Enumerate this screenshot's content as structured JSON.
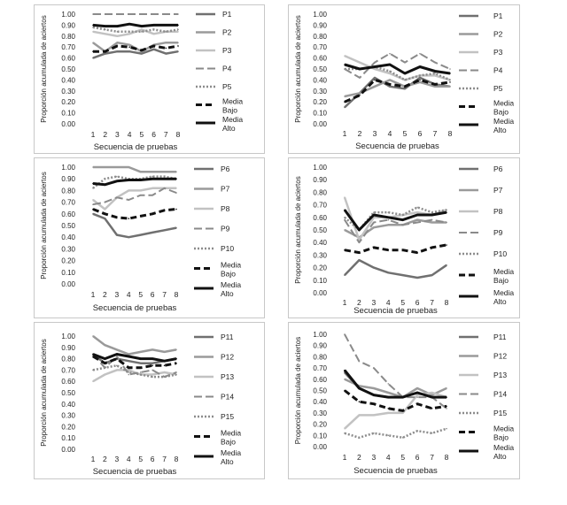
{
  "chart_data": [
    {
      "type": "line",
      "xlabel": "Secuencia de pruebas",
      "ylabel": "Proporción acumulada de aciertos",
      "ylim": [
        0,
        1
      ],
      "x": [
        1,
        2,
        3,
        4,
        5,
        6,
        7,
        8
      ],
      "yticks": [
        "0.00",
        "0.10",
        "0.20",
        "0.30",
        "0.40",
        "0.50",
        "0.60",
        "0.70",
        "0.80",
        "0.90",
        "1.00"
      ],
      "series": [
        {
          "name": "P1",
          "values": [
            0.6,
            0.64,
            0.66,
            0.66,
            0.64,
            0.68,
            0.64,
            0.66
          ]
        },
        {
          "name": "P2",
          "values": [
            0.74,
            0.66,
            0.74,
            0.72,
            0.66,
            0.72,
            0.74,
            0.74
          ]
        },
        {
          "name": "P3",
          "values": [
            0.84,
            0.82,
            0.8,
            0.82,
            0.86,
            0.82,
            0.84,
            0.84
          ]
        },
        {
          "name": "P4",
          "values": [
            1.0,
            1.0,
            1.0,
            1.0,
            1.0,
            1.0,
            1.0,
            1.0
          ]
        },
        {
          "name": "P5",
          "values": [
            0.88,
            0.86,
            0.84,
            0.84,
            0.84,
            0.86,
            0.84,
            0.86
          ]
        },
        {
          "name": "Media Bajo",
          "values": [
            0.66,
            0.66,
            0.71,
            0.7,
            0.67,
            0.71,
            0.69,
            0.71
          ]
        },
        {
          "name": "Media Alto",
          "values": [
            0.9,
            0.89,
            0.89,
            0.91,
            0.89,
            0.9,
            0.9,
            0.9
          ]
        }
      ]
    },
    {
      "type": "line",
      "xlabel": "Secuencia de pruebas",
      "ylabel": "Proporción acumulada de aciertos",
      "ylim": [
        0,
        1
      ],
      "x": [
        1,
        2,
        3,
        4,
        5,
        6,
        7,
        8
      ],
      "yticks": [
        "0.00",
        "0.10",
        "0.20",
        "0.30",
        "0.40",
        "0.50",
        "0.60",
        "0.70",
        "0.80",
        "0.90",
        "1.00"
      ],
      "series": [
        {
          "name": "P1",
          "values": [
            0.15,
            0.28,
            0.42,
            0.34,
            0.32,
            0.42,
            0.36,
            0.34
          ]
        },
        {
          "name": "P2",
          "values": [
            0.25,
            0.28,
            0.34,
            0.4,
            0.34,
            0.38,
            0.34,
            0.34
          ]
        },
        {
          "name": "P3",
          "values": [
            0.62,
            0.56,
            0.5,
            0.46,
            0.4,
            0.44,
            0.44,
            0.4
          ]
        },
        {
          "name": "P4",
          "values": [
            0.5,
            0.42,
            0.56,
            0.64,
            0.56,
            0.64,
            0.56,
            0.5
          ]
        },
        {
          "name": "P5",
          "values": [
            0.5,
            0.5,
            0.52,
            0.48,
            0.4,
            0.44,
            0.46,
            0.4
          ]
        },
        {
          "name": "Media Bajo",
          "values": [
            0.2,
            0.26,
            0.4,
            0.36,
            0.34,
            0.4,
            0.36,
            0.38
          ]
        },
        {
          "name": "Media Alto",
          "values": [
            0.54,
            0.5,
            0.52,
            0.54,
            0.46,
            0.52,
            0.48,
            0.46
          ]
        }
      ]
    },
    {
      "type": "line",
      "xlabel": "Secuencia de pruebas",
      "ylabel": "Proporción acumulada de aciertos",
      "ylim": [
        0,
        1
      ],
      "x": [
        1,
        2,
        3,
        4,
        5,
        6,
        7,
        8
      ],
      "yticks": [
        "0.00",
        "0.10",
        "0.20",
        "0.30",
        "0.40",
        "0.50",
        "0.60",
        "0.70",
        "0.80",
        "0.90",
        "1.00"
      ],
      "series": [
        {
          "name": "P6",
          "values": [
            0.6,
            0.56,
            0.42,
            0.4,
            0.42,
            0.44,
            0.46,
            0.48
          ]
        },
        {
          "name": "P7",
          "values": [
            1.0,
            1.0,
            1.0,
            1.0,
            0.96,
            0.96,
            0.96,
            0.96
          ]
        },
        {
          "name": "P8",
          "values": [
            0.72,
            0.64,
            0.74,
            0.8,
            0.8,
            0.82,
            0.82,
            0.82
          ]
        },
        {
          "name": "P9",
          "values": [
            0.68,
            0.7,
            0.74,
            0.72,
            0.76,
            0.76,
            0.82,
            0.78
          ]
        },
        {
          "name": "P10",
          "values": [
            0.82,
            0.9,
            0.92,
            0.9,
            0.9,
            0.92,
            0.92,
            0.9
          ]
        },
        {
          "name": "Media Bajo",
          "values": [
            0.64,
            0.6,
            0.57,
            0.56,
            0.58,
            0.6,
            0.63,
            0.64
          ]
        },
        {
          "name": "Media Alto",
          "values": [
            0.86,
            0.85,
            0.88,
            0.89,
            0.89,
            0.9,
            0.9,
            0.9
          ]
        }
      ]
    },
    {
      "type": "line",
      "xlabel": "Secuencia de pruebas",
      "ylabel": "Proporción acumulada de aciertos",
      "ylim": [
        0,
        1
      ],
      "x": [
        1,
        2,
        3,
        4,
        5,
        6,
        7,
        8
      ],
      "yticks": [
        "0.00",
        "0.10",
        "0.20",
        "0.30",
        "0.40",
        "0.50",
        "0.60",
        "0.70",
        "0.80",
        "0.90",
        "1.00"
      ],
      "series": [
        {
          "name": "P6",
          "values": [
            0.14,
            0.26,
            0.2,
            0.16,
            0.14,
            0.12,
            0.14,
            0.22
          ]
        },
        {
          "name": "P7",
          "values": [
            0.5,
            0.44,
            0.52,
            0.54,
            0.54,
            0.58,
            0.56,
            0.56
          ]
        },
        {
          "name": "P8",
          "values": [
            0.76,
            0.42,
            0.6,
            0.6,
            0.62,
            0.64,
            0.62,
            0.66
          ]
        },
        {
          "name": "P9",
          "values": [
            0.58,
            0.4,
            0.56,
            0.58,
            0.54,
            0.56,
            0.58,
            0.56
          ]
        },
        {
          "name": "P10",
          "values": [
            0.6,
            0.5,
            0.64,
            0.64,
            0.62,
            0.68,
            0.64,
            0.66
          ]
        },
        {
          "name": "Media Bajo",
          "values": [
            0.34,
            0.32,
            0.36,
            0.34,
            0.34,
            0.32,
            0.36,
            0.38
          ]
        },
        {
          "name": "Media Alto",
          "values": [
            0.66,
            0.5,
            0.62,
            0.6,
            0.58,
            0.62,
            0.62,
            0.64
          ]
        }
      ]
    },
    {
      "type": "line",
      "xlabel": "Secuencia de pruebas",
      "ylabel": "Proporción acumulada de aciertos",
      "ylim": [
        0,
        1
      ],
      "x": [
        1,
        2,
        3,
        4,
        5,
        6,
        7,
        8
      ],
      "yticks": [
        "0.00",
        "0.10",
        "0.20",
        "0.30",
        "0.40",
        "0.50",
        "0.60",
        "0.70",
        "0.80",
        "0.90",
        "1.00"
      ],
      "series": [
        {
          "name": "P11",
          "values": [
            0.84,
            0.76,
            0.8,
            0.78,
            0.76,
            0.76,
            0.78,
            0.8
          ]
        },
        {
          "name": "P12",
          "values": [
            1.0,
            0.92,
            0.88,
            0.84,
            0.86,
            0.88,
            0.86,
            0.88
          ]
        },
        {
          "name": "P13",
          "values": [
            0.6,
            0.66,
            0.7,
            0.7,
            0.66,
            0.66,
            0.68,
            0.66
          ]
        },
        {
          "name": "P14",
          "values": [
            0.84,
            0.72,
            0.82,
            0.66,
            0.68,
            0.7,
            0.64,
            0.68
          ]
        },
        {
          "name": "P15",
          "values": [
            0.7,
            0.72,
            0.74,
            0.68,
            0.66,
            0.64,
            0.64,
            0.66
          ]
        },
        {
          "name": "Media Bajo",
          "values": [
            0.82,
            0.76,
            0.8,
            0.72,
            0.72,
            0.74,
            0.74,
            0.76
          ]
        },
        {
          "name": "Media Alto",
          "values": [
            0.84,
            0.8,
            0.84,
            0.82,
            0.8,
            0.8,
            0.78,
            0.8
          ]
        }
      ]
    },
    {
      "type": "line",
      "xlabel": "Secuencia de pruebas",
      "ylabel": "Proporción acumulada de aciertos",
      "ylim": [
        0,
        1
      ],
      "x": [
        1,
        2,
        3,
        4,
        5,
        6,
        7,
        8
      ],
      "yticks": [
        "0.00",
        "0.10",
        "0.20",
        "0.30",
        "0.40",
        "0.50",
        "0.60",
        "0.70",
        "0.80",
        "0.90",
        "1.00"
      ],
      "series": [
        {
          "name": "P11",
          "values": [
            0.66,
            0.52,
            0.46,
            0.44,
            0.44,
            0.48,
            0.44,
            0.44
          ]
        },
        {
          "name": "P12",
          "values": [
            0.6,
            0.54,
            0.52,
            0.48,
            0.44,
            0.52,
            0.46,
            0.52
          ]
        },
        {
          "name": "P13",
          "values": [
            0.16,
            0.28,
            0.28,
            0.3,
            0.3,
            0.46,
            0.48,
            0.44
          ]
        },
        {
          "name": "P14",
          "values": [
            1.0,
            0.76,
            0.7,
            0.56,
            0.44,
            0.44,
            0.44,
            0.34
          ]
        },
        {
          "name": "P15",
          "values": [
            0.12,
            0.08,
            0.12,
            0.1,
            0.08,
            0.14,
            0.12,
            0.16
          ]
        },
        {
          "name": "Media Bajo",
          "values": [
            0.5,
            0.4,
            0.38,
            0.34,
            0.32,
            0.38,
            0.34,
            0.36
          ]
        },
        {
          "name": "Media Alto",
          "values": [
            0.68,
            0.52,
            0.46,
            0.44,
            0.44,
            0.48,
            0.44,
            0.44
          ]
        }
      ]
    }
  ]
}
